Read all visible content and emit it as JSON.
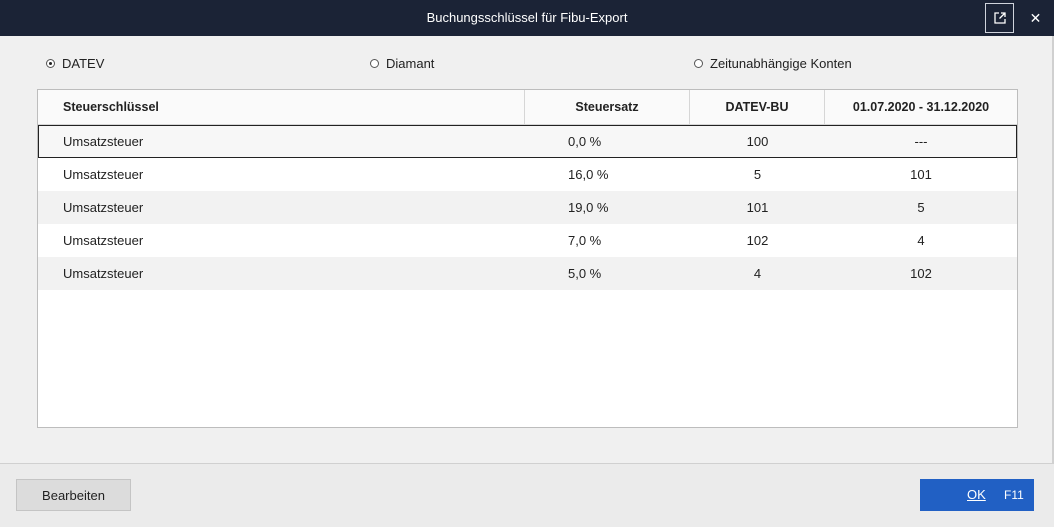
{
  "window": {
    "title": "Buchungsschlüssel für Fibu-Export",
    "popout_icon": "popout-icon",
    "close_label": "✕"
  },
  "radios": [
    {
      "label": "DATEV",
      "checked": true
    },
    {
      "label": "Diamant",
      "checked": false
    },
    {
      "label": "Zeitunabhängige Konten",
      "checked": false
    }
  ],
  "table": {
    "columns": [
      "Steuerschlüssel",
      "Steuersatz",
      "DATEV-BU",
      "01.07.2020 - 31.12.2020"
    ],
    "rows": [
      [
        "Umsatzsteuer",
        "0,0 %",
        "100",
        "---"
      ],
      [
        "Umsatzsteuer",
        "16,0 %",
        "5",
        "101"
      ],
      [
        "Umsatzsteuer",
        "19,0 %",
        "101",
        "5"
      ],
      [
        "Umsatzsteuer",
        "7,0 %",
        "102",
        "4"
      ],
      [
        "Umsatzsteuer",
        "5,0 %",
        "4",
        "102"
      ]
    ],
    "selected_row": 0
  },
  "footer": {
    "edit_label": "Bearbeiten",
    "ok_label": "OK",
    "ok_shortcut": "F11"
  },
  "colors": {
    "titlebar": "#1b2336",
    "primary_button": "#2160c4"
  }
}
